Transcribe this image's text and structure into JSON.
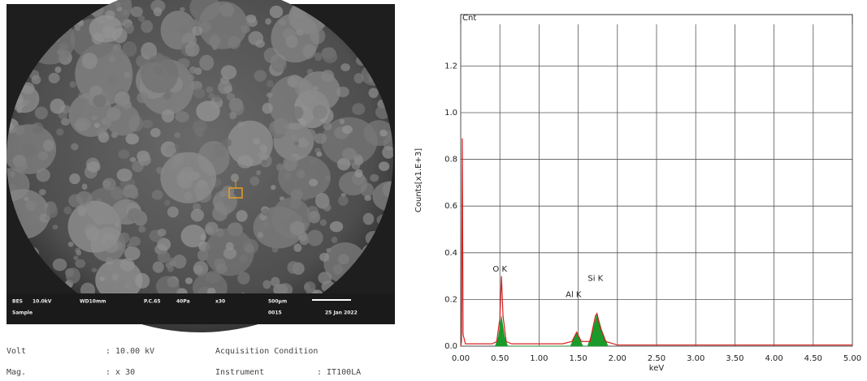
{
  "sem_image": {
    "info_row1": [
      "BES",
      "10.0kV",
      "WD10mm",
      "P.C.65",
      "40Pa",
      "x30",
      "500μm"
    ],
    "info_row2": [
      "Sample",
      "0015",
      "25 Jan 2022"
    ]
  },
  "conditions": {
    "rows": [
      [
        "Volt",
        ": 10.00 kV",
        "Acquisition Condition"
      ],
      [
        "Mag.",
        ": x 30",
        "Instrument",
        ": IT100LA"
      ]
    ]
  },
  "chart_data": {
    "type": "line",
    "top_label": "Cnt",
    "x_label": "keV",
    "y_label": "Counts[x1.E+3]",
    "xlim": [
      0,
      5
    ],
    "ylim": [
      0,
      1.42
    ],
    "grid": true,
    "xticks": [
      {
        "value": 0,
        "label": "0.00"
      },
      {
        "value": 0.5,
        "label": "0.50"
      },
      {
        "value": 1,
        "label": "1.00"
      },
      {
        "value": 1.5,
        "label": "1.50"
      },
      {
        "value": 2,
        "label": "2.00"
      },
      {
        "value": 2.5,
        "label": "2.50"
      },
      {
        "value": 3,
        "label": "3.00"
      },
      {
        "value": 3.5,
        "label": "3.50"
      },
      {
        "value": 4,
        "label": "4.00"
      },
      {
        "value": 4.5,
        "label": "4.50"
      },
      {
        "value": 5,
        "label": "5.00"
      }
    ],
    "yticks": [
      {
        "value": 0,
        "label": "0.0"
      },
      {
        "value": 0.2,
        "label": "0.2"
      },
      {
        "value": 0.4,
        "label": "0.4"
      },
      {
        "value": 0.6,
        "label": "0.6"
      },
      {
        "value": 0.8,
        "label": "0.8"
      },
      {
        "value": 1,
        "label": "1.0"
      },
      {
        "value": 1.2,
        "label": "1.2"
      }
    ],
    "series": [
      {
        "color": "#d62020",
        "fill": false,
        "x": [
          0,
          0.01,
          0.02,
          0.03,
          0.06,
          0.4,
          0.46,
          0.5,
          0.52,
          0.54,
          0.58,
          0.65,
          1.3,
          1.42,
          1.48,
          1.54,
          1.65,
          1.72,
          1.74,
          1.78,
          1.85,
          2.0,
          5.0
        ],
        "values": [
          0,
          0.02,
          0.89,
          0.05,
          0.01,
          0.01,
          0.02,
          0.12,
          0.3,
          0.13,
          0.02,
          0.01,
          0.01,
          0.02,
          0.06,
          0.02,
          0.02,
          0.13,
          0.14,
          0.08,
          0.02,
          0.005,
          0.005
        ]
      },
      {
        "color": "#1a9a2a",
        "fill": true,
        "x": [
          0.44,
          0.48,
          0.52,
          0.56,
          0.6,
          1.4,
          1.48,
          1.56,
          1.62,
          1.68,
          1.74,
          1.8,
          1.88
        ],
        "values": [
          0,
          0.04,
          0.13,
          0.04,
          0,
          0,
          0.06,
          0,
          0,
          0.06,
          0.14,
          0.07,
          0
        ]
      }
    ],
    "annotations": [
      {
        "text": "O K",
        "x": 0.5,
        "y": 0.33
      },
      {
        "text": "Al K",
        "x": 1.44,
        "y": 0.22
      },
      {
        "text": "Si K",
        "x": 1.72,
        "y": 0.29
      }
    ]
  }
}
